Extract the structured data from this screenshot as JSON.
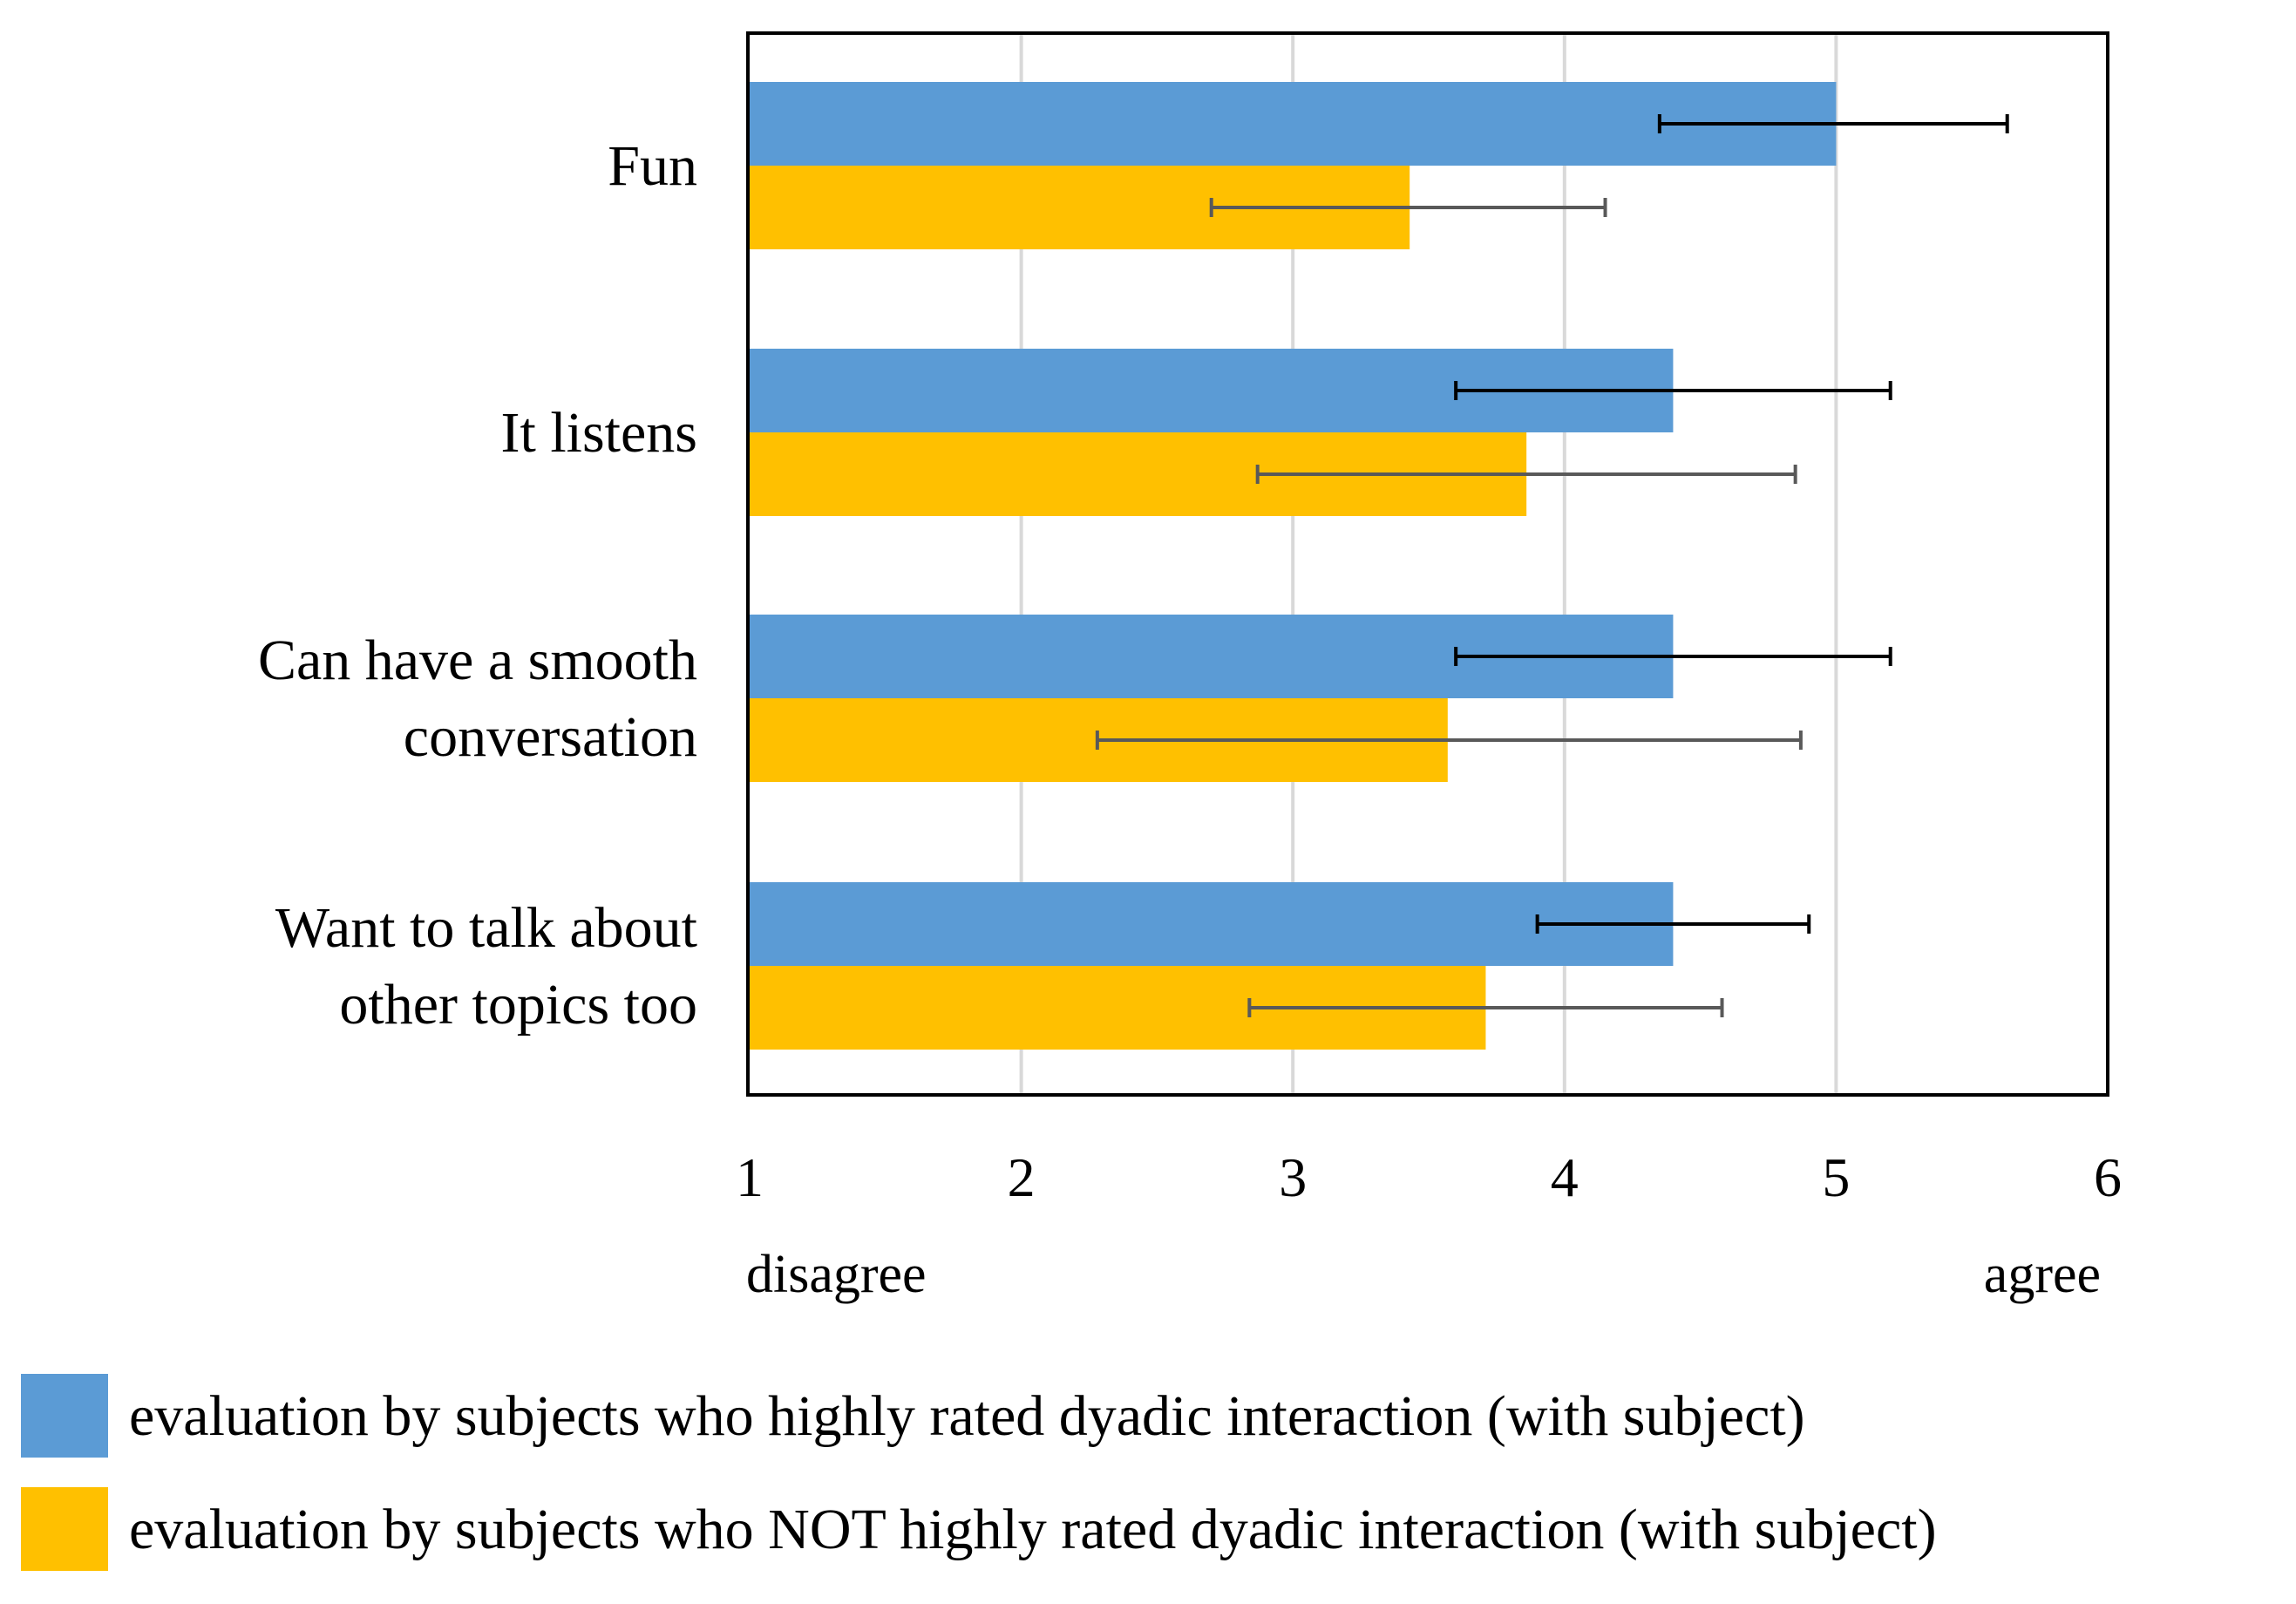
{
  "chart_data": {
    "type": "bar",
    "orientation": "horizontal",
    "title": "",
    "categories": [
      [
        "Fun"
      ],
      [
        "It listens"
      ],
      [
        "Can have a smooth",
        "conversation"
      ],
      [
        "Want to talk about",
        "other topics too"
      ]
    ],
    "series": [
      {
        "name": "evaluation by subjects who highly rated dyadic interaction (with subject)",
        "color": "#5B9BD5",
        "error_color": "#000000",
        "values": [
          5.0,
          4.4,
          4.4,
          4.4
        ],
        "error_low": [
          4.35,
          3.6,
          3.6,
          3.9
        ],
        "error_high": [
          5.63,
          5.2,
          5.2,
          4.9
        ]
      },
      {
        "name": "evaluation by subjects who NOT highly rated dyadic interaction (with subject)",
        "color": "#FFC000",
        "error_color": "#595959",
        "values": [
          3.43,
          3.86,
          3.57,
          3.71
        ],
        "error_low": [
          2.7,
          2.87,
          2.28,
          2.84
        ],
        "error_high": [
          4.15,
          4.85,
          4.87,
          4.58
        ]
      }
    ],
    "xlim": [
      1,
      6
    ],
    "xticks": [
      "1",
      "2",
      "3",
      "4",
      "5",
      "6"
    ],
    "xlabel_left": "disagree",
    "xlabel_right": "agree",
    "grid": true,
    "legend_position": "bottom"
  }
}
